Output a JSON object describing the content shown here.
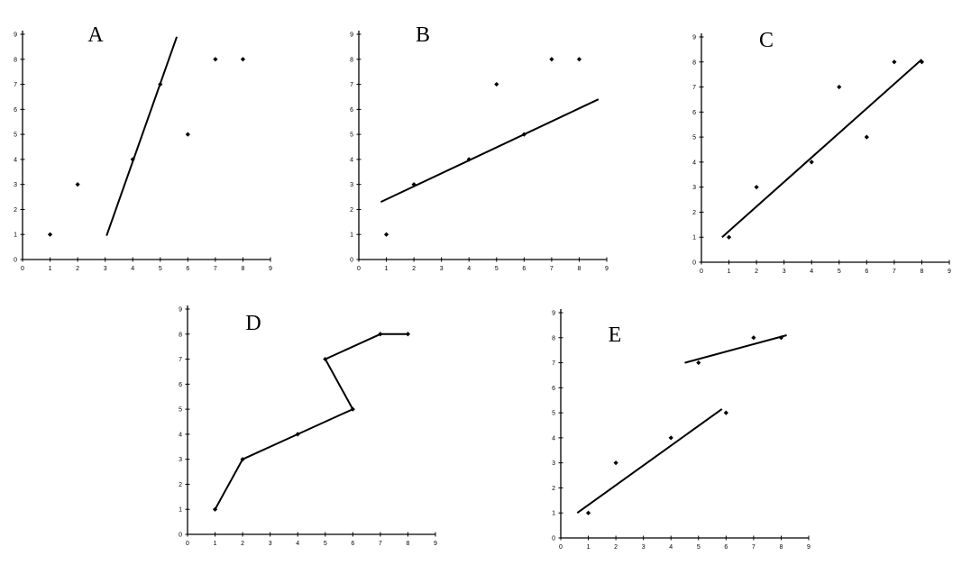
{
  "chart_data": [
    {
      "type": "scatter",
      "title": "A",
      "xlim": [
        0,
        9
      ],
      "ylim": [
        0,
        9
      ],
      "x_ticks": [
        "0",
        "1",
        "2",
        "3",
        "4",
        "5",
        "6",
        "7",
        "8",
        "9"
      ],
      "y_ticks": [
        "0",
        "1",
        "2",
        "3",
        "4",
        "5",
        "6",
        "7",
        "8",
        "9"
      ],
      "grid": false,
      "points": [
        [
          1,
          1
        ],
        [
          2,
          3
        ],
        [
          4,
          4
        ],
        [
          5,
          7
        ],
        [
          6,
          5
        ],
        [
          7,
          8
        ],
        [
          8,
          8
        ]
      ],
      "lines": [
        [
          [
            3.05,
            0.95
          ],
          [
            5.6,
            8.9
          ]
        ]
      ]
    },
    {
      "type": "scatter",
      "title": "B",
      "xlim": [
        0,
        9
      ],
      "ylim": [
        0,
        9
      ],
      "x_ticks": [
        "0",
        "1",
        "2",
        "3",
        "4",
        "5",
        "6",
        "7",
        "8",
        "9"
      ],
      "y_ticks": [
        "0",
        "1",
        "2",
        "3",
        "4",
        "5",
        "6",
        "7",
        "8",
        "9"
      ],
      "grid": false,
      "points": [
        [
          1,
          1
        ],
        [
          2,
          3
        ],
        [
          4,
          4
        ],
        [
          5,
          7
        ],
        [
          6,
          5
        ],
        [
          7,
          8
        ],
        [
          8,
          8
        ]
      ],
      "lines": [
        [
          [
            0.8,
            2.3
          ],
          [
            8.7,
            6.4
          ]
        ]
      ]
    },
    {
      "type": "scatter",
      "title": "C",
      "xlim": [
        0,
        9
      ],
      "ylim": [
        0,
        9
      ],
      "x_ticks": [
        "0",
        "1",
        "2",
        "3",
        "4",
        "5",
        "6",
        "7",
        "8",
        "9"
      ],
      "y_ticks": [
        "0",
        "1",
        "2",
        "3",
        "4",
        "5",
        "6",
        "7",
        "8",
        "9"
      ],
      "grid": false,
      "points": [
        [
          1,
          1
        ],
        [
          2,
          3
        ],
        [
          4,
          4
        ],
        [
          5,
          7
        ],
        [
          6,
          5
        ],
        [
          7,
          8
        ],
        [
          8,
          8
        ]
      ],
      "lines": [
        [
          [
            0.75,
            1.0
          ],
          [
            8.0,
            8.1
          ]
        ]
      ]
    },
    {
      "type": "line",
      "title": "D",
      "xlim": [
        0,
        9
      ],
      "ylim": [
        0,
        9
      ],
      "x_ticks": [
        "0",
        "1",
        "2",
        "3",
        "4",
        "5",
        "6",
        "7",
        "8",
        "9"
      ],
      "y_ticks": [
        "0",
        "1",
        "2",
        "3",
        "4",
        "5",
        "6",
        "7",
        "8",
        "9"
      ],
      "grid": false,
      "points": [
        [
          1,
          1
        ],
        [
          2,
          3
        ],
        [
          4,
          4
        ],
        [
          5,
          7
        ],
        [
          6,
          5
        ],
        [
          7,
          8
        ],
        [
          8,
          8
        ]
      ],
      "lines": [
        [
          [
            1,
            1
          ],
          [
            2,
            3
          ],
          [
            4,
            4
          ],
          [
            6,
            5
          ],
          [
            5,
            7
          ],
          [
            7,
            8
          ],
          [
            8,
            8
          ]
        ]
      ]
    },
    {
      "type": "scatter",
      "title": "E",
      "xlim": [
        0,
        9
      ],
      "ylim": [
        0,
        9
      ],
      "x_ticks": [
        "0",
        "1",
        "2",
        "3",
        "4",
        "5",
        "6",
        "7",
        "8",
        "9"
      ],
      "y_ticks": [
        "0",
        "1",
        "2",
        "3",
        "4",
        "5",
        "6",
        "7",
        "8",
        "9"
      ],
      "grid": false,
      "points": [
        [
          1,
          1
        ],
        [
          2,
          3
        ],
        [
          4,
          4
        ],
        [
          5,
          7
        ],
        [
          6,
          5
        ],
        [
          7,
          8
        ],
        [
          8,
          8
        ]
      ],
      "lines": [
        [
          [
            0.6,
            1.0
          ],
          [
            5.85,
            5.15
          ]
        ],
        [
          [
            4.5,
            7.0
          ],
          [
            8.2,
            8.1
          ]
        ]
      ]
    }
  ]
}
